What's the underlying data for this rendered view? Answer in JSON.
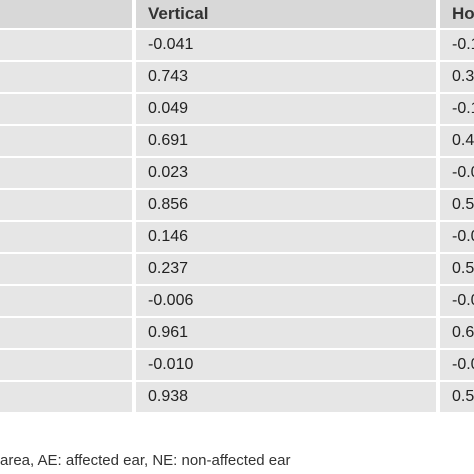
{
  "table": {
    "headers": [
      "",
      "Vertical",
      "Ho"
    ],
    "rows": [
      [
        "",
        "-0.041",
        "-0.1"
      ],
      [
        "",
        "0.743",
        "0.3"
      ],
      [
        "",
        "0.049",
        "-0.1"
      ],
      [
        "",
        "0.691",
        "0.4"
      ],
      [
        "",
        "0.023",
        "-0.0"
      ],
      [
        "",
        "0.856",
        "0.5"
      ],
      [
        "",
        "0.146",
        "-0.0"
      ],
      [
        "",
        "0.237",
        "0.5"
      ],
      [
        "",
        "-0.006",
        "-0.0"
      ],
      [
        "",
        "0.961",
        "0.6"
      ],
      [
        "",
        "-0.010",
        "-0.0"
      ],
      [
        "",
        "0.938",
        "0.5"
      ]
    ]
  },
  "footnote": "area, AE: affected ear, NE: non-affected ear"
}
